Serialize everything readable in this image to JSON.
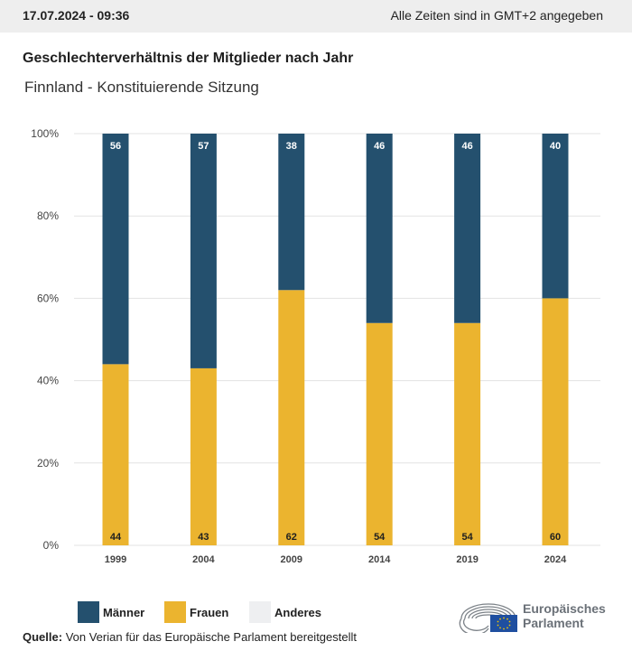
{
  "header": {
    "timestamp": "17.07.2024 - 09:36",
    "timezone_note": "Alle Zeiten sind in GMT+2 angegeben"
  },
  "title": "Geschlechterverhältnis der Mitglieder nach Jahr",
  "subtitle": "Finnland - Konstituierende Sitzung",
  "colors": {
    "maenner": "#24506e",
    "frauen": "#ebb42f",
    "anderes": "#eeeff1",
    "grid": "#e3e3e3",
    "axis_text": "#444444"
  },
  "chart_data": {
    "type": "bar",
    "stacked": true,
    "categories": [
      "1999",
      "2004",
      "2009",
      "2014",
      "2019",
      "2024"
    ],
    "series": [
      {
        "name": "Frauen",
        "values": [
          44,
          43,
          62,
          54,
          54,
          60
        ]
      },
      {
        "name": "Männer",
        "values": [
          56,
          57,
          38,
          46,
          46,
          40
        ]
      },
      {
        "name": "Anderes",
        "values": [
          0,
          0,
          0,
          0,
          0,
          0
        ]
      }
    ],
    "ylim": [
      0,
      100
    ],
    "yticks": [
      "0%",
      "20%",
      "40%",
      "60%",
      "80%",
      "100%"
    ],
    "grid": true,
    "legend_position": "bottom-left"
  },
  "legend": [
    {
      "label": "Männer",
      "icon": "maenner-swatch"
    },
    {
      "label": "Frauen",
      "icon": "frauen-swatch"
    },
    {
      "label": "Anderes",
      "icon": "anderes-swatch"
    }
  ],
  "source": {
    "label": "Quelle:",
    "text": " Von Verian für das Europäische Parlament bereitgestellt"
  },
  "logo": {
    "line1": "Europäisches",
    "line2": "Parlament"
  }
}
